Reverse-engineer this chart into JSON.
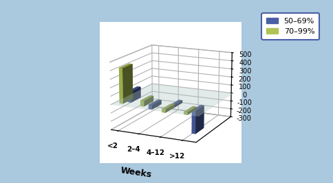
{
  "categories": [
    "<2",
    "2–4",
    "4–12",
    ">12"
  ],
  "series": {
    "50-69%": {
      "values": [
        130,
        -50,
        30,
        -270
      ],
      "color": "#4a5fa5"
    },
    "70-99%": {
      "values": [
        420,
        65,
        -40,
        -30
      ],
      "color": "#afc455"
    }
  },
  "xlabel": "Weeks",
  "zlim": [
    -300,
    500
  ],
  "zticks": [
    -300,
    -200,
    -100,
    0,
    100,
    200,
    300,
    400,
    500
  ],
  "background_color": "#aac8de",
  "legend_labels": [
    "50–69%",
    "70–99%"
  ],
  "legend_colors": [
    "#4a5fa5",
    "#afc455"
  ]
}
